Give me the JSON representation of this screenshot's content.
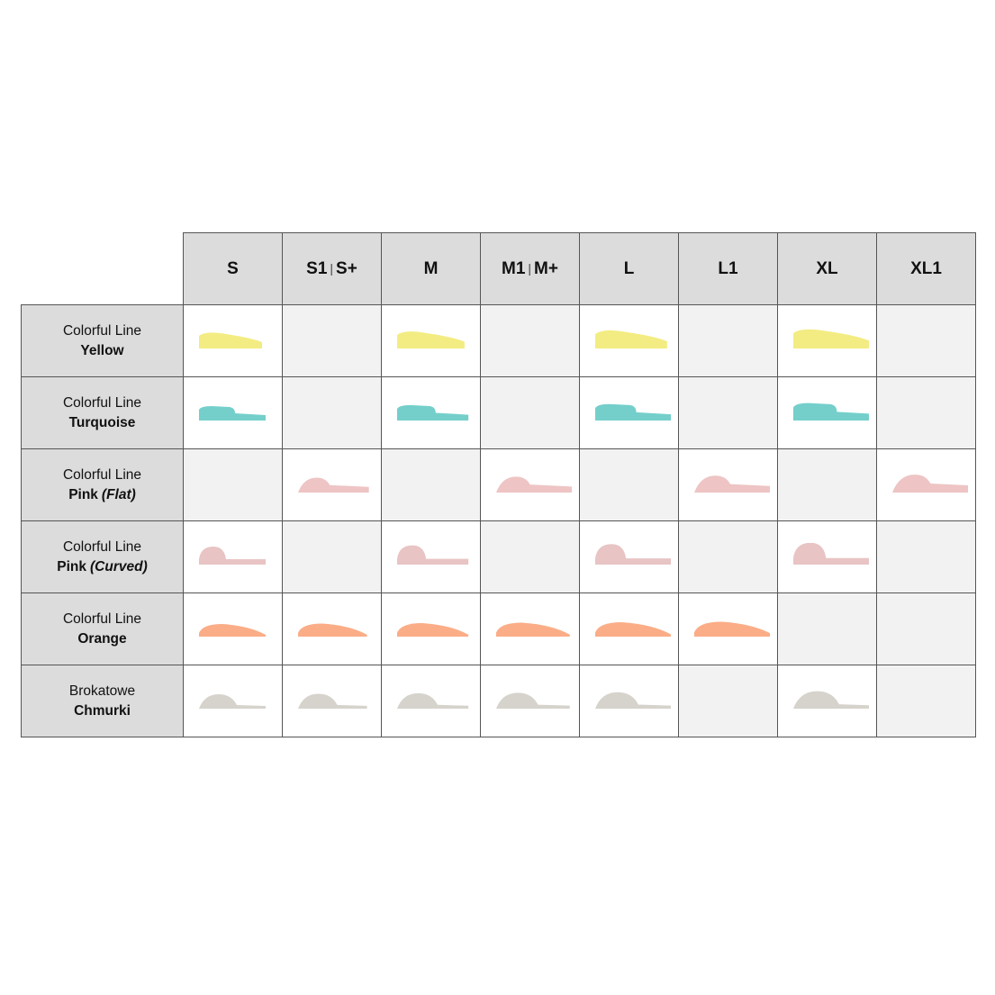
{
  "sizes": [
    {
      "main": "S",
      "alt": ""
    },
    {
      "main": "S1",
      "alt": "S+"
    },
    {
      "main": "M",
      "alt": ""
    },
    {
      "main": "M1",
      "alt": "M+"
    },
    {
      "main": "L",
      "alt": ""
    },
    {
      "main": "L1",
      "alt": ""
    },
    {
      "main": "XL",
      "alt": ""
    },
    {
      "main": "XL1",
      "alt": ""
    }
  ],
  "separator": "|",
  "rows": [
    {
      "line1": "Colorful Line",
      "line2": "Yellow",
      "line2_sub": "",
      "color": "#f3ec82",
      "shape": "wedge",
      "available": [
        true,
        false,
        true,
        false,
        true,
        false,
        true,
        false
      ]
    },
    {
      "line1": "Colorful Line",
      "line2": "Turquoise",
      "line2_sub": "",
      "color": "#74cfcb",
      "shape": "step",
      "available": [
        true,
        false,
        true,
        false,
        true,
        false,
        true,
        false
      ]
    },
    {
      "line1": "Colorful Line",
      "line2": "Pink",
      "line2_sub": "(Flat)",
      "color": "#eec4c4",
      "shape": "dome-flat",
      "available": [
        false,
        true,
        false,
        true,
        false,
        true,
        false,
        true
      ]
    },
    {
      "line1": "Colorful Line",
      "line2": "Pink",
      "line2_sub": "(Curved)",
      "color": "#e8c4c4",
      "shape": "dome-curved",
      "available": [
        true,
        false,
        true,
        false,
        true,
        false,
        true,
        false
      ]
    },
    {
      "line1": "Colorful Line",
      "line2": "Orange",
      "line2_sub": "",
      "color": "#fbad87",
      "shape": "wing",
      "available": [
        true,
        true,
        true,
        true,
        true,
        true,
        false,
        false
      ]
    },
    {
      "line1": "Brokatowe",
      "line2": "Chmurki",
      "line2_sub": "",
      "color": "#d6d3cc",
      "shape": "cloud",
      "available": [
        true,
        true,
        true,
        true,
        true,
        false,
        true,
        false
      ]
    }
  ]
}
